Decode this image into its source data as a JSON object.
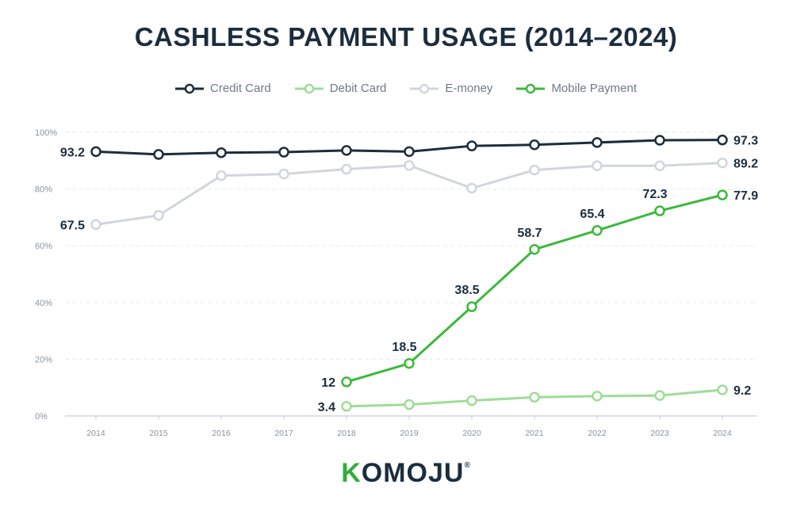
{
  "logo_text": {
    "first": "K",
    "rest": "OMOJU",
    "mark": "®"
  },
  "chart_data": {
    "type": "line",
    "title": "CASHLESS PAYMENT USAGE (2014–2024)",
    "xlabel": "",
    "ylabel": "",
    "x": [
      "2014",
      "2015",
      "2016",
      "2017",
      "2018",
      "2019",
      "2020",
      "2021",
      "2022",
      "2023",
      "2024"
    ],
    "ylim": [
      0,
      100
    ],
    "yticks": [
      0,
      20,
      40,
      60,
      80,
      100
    ],
    "ytick_labels": [
      "0%",
      "20%",
      "40%",
      "60%",
      "80%",
      "100%"
    ],
    "grid": true,
    "legend_position": "top",
    "series": [
      {
        "name": "Credit Card",
        "color": "#1b2d3e",
        "values": [
          93.2,
          92.2,
          92.8,
          93.0,
          93.6,
          93.2,
          95.2,
          95.6,
          96.4,
          97.2,
          97.3
        ],
        "labeled_points": [
          {
            "year": "2014",
            "label": "93.2",
            "side": "left"
          },
          {
            "year": "2024",
            "label": "97.3",
            "side": "right"
          }
        ]
      },
      {
        "name": "Debit Card",
        "color": "#9fdc97",
        "values": [
          null,
          null,
          null,
          null,
          3.4,
          4.0,
          5.4,
          6.6,
          7.0,
          7.2,
          9.2
        ],
        "labeled_points": [
          {
            "year": "2018",
            "label": "3.4",
            "side": "left"
          },
          {
            "year": "2024",
            "label": "9.2",
            "side": "right"
          }
        ]
      },
      {
        "name": "E-money",
        "color": "#d2d5da",
        "values": [
          67.5,
          70.7,
          84.7,
          85.3,
          87.0,
          88.3,
          80.3,
          86.7,
          88.2,
          88.2,
          89.2
        ],
        "labeled_points": [
          {
            "year": "2014",
            "label": "67.5",
            "side": "left"
          },
          {
            "year": "2024",
            "label": "89.2",
            "side": "right"
          }
        ]
      },
      {
        "name": "Mobile Payment",
        "color": "#3cb93a",
        "values": [
          null,
          null,
          null,
          null,
          12,
          18.5,
          38.5,
          58.7,
          65.4,
          72.3,
          77.9
        ],
        "labeled_points": [
          {
            "year": "2018",
            "label": "12",
            "side": "left"
          },
          {
            "year": "2019",
            "label": "18.5",
            "side": "above"
          },
          {
            "year": "2020",
            "label": "38.5",
            "side": "above"
          },
          {
            "year": "2021",
            "label": "58.7",
            "side": "above"
          },
          {
            "year": "2022",
            "label": "65.4",
            "side": "above"
          },
          {
            "year": "2023",
            "label": "72.3",
            "side": "above"
          },
          {
            "year": "2024",
            "label": "77.9",
            "side": "right"
          }
        ]
      }
    ]
  }
}
